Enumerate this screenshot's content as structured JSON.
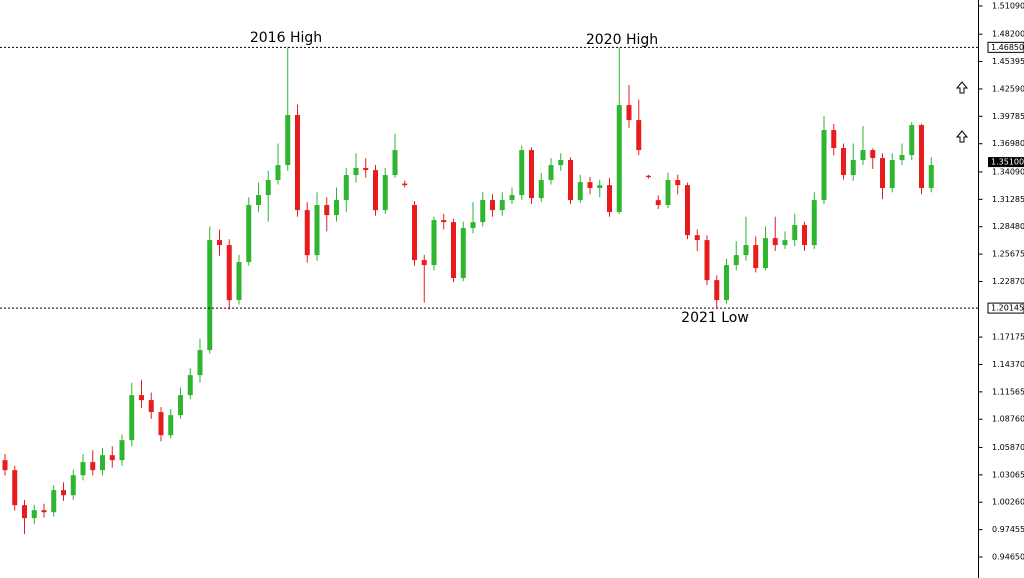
{
  "chart_data": {
    "type": "candlestick",
    "up_color": "#2fb52f",
    "down_color": "#e81c1c",
    "ylim": [
      0.925,
      1.517
    ],
    "yticks": [
      {
        "value": 1.5109,
        "label": "1.51090"
      },
      {
        "value": 1.482,
        "label": "1.48200"
      },
      {
        "value": 1.45395,
        "label": "1.45395"
      },
      {
        "value": 1.4259,
        "label": "1.42590"
      },
      {
        "value": 1.39785,
        "label": "1.39785"
      },
      {
        "value": 1.3698,
        "label": "1.36980"
      },
      {
        "value": 1.3409,
        "label": "1.34090"
      },
      {
        "value": 1.31285,
        "label": "1.31285"
      },
      {
        "value": 1.2848,
        "label": "1.28480"
      },
      {
        "value": 1.25675,
        "label": "1.25675"
      },
      {
        "value": 1.2287,
        "label": "1.22870"
      },
      {
        "value": 1.17175,
        "label": "1.17175"
      },
      {
        "value": 1.1437,
        "label": "1.14370"
      },
      {
        "value": 1.11565,
        "label": "1.11565"
      },
      {
        "value": 1.0876,
        "label": "1.08760"
      },
      {
        "value": 1.0587,
        "label": "1.05870"
      },
      {
        "value": 1.03065,
        "label": "1.03065"
      },
      {
        "value": 1.0026,
        "label": "1.00260"
      },
      {
        "value": 0.97455,
        "label": "0.97455"
      },
      {
        "value": 0.9465,
        "label": "0.94650"
      }
    ],
    "levels": [
      {
        "value": 1.4685,
        "label": "1.46850"
      },
      {
        "value": 1.20145,
        "label": "1.20145"
      }
    ],
    "current_price": {
      "value": 1.351,
      "label": "1.35100"
    },
    "annotations": [
      "2016 High",
      "2020 High",
      "2021 Low"
    ],
    "open": [
      1.0457,
      1.0355,
      0.9996,
      0.9863,
      0.9945,
      0.9924,
      1.015,
      1.0098,
      1.0303,
      1.0437,
      1.0355,
      1.0508,
      1.0457,
      1.0662,
      1.1123,
      1.1072,
      1.0949,
      1.0713,
      1.0918,
      1.1123,
      1.1328,
      1.1584,
      1.2711,
      1.266,
      1.2096,
      1.2486,
      1.307,
      1.3172,
      1.3326,
      1.3479,
      1.3992,
      1.3018,
      1.2557,
      1.307,
      1.2967,
      1.3121,
      1.3377,
      1.3449,
      1.3428,
      1.3018,
      1.3377,
      1.329,
      1.307,
      1.2506,
      1.2455,
      1.2916,
      1.2895,
      1.2322,
      1.2834,
      1.2895,
      1.3121,
      1.3018,
      1.3121,
      1.3172,
      1.3633,
      1.3141,
      1.3326,
      1.3479,
      1.3531,
      1.3121,
      1.3305,
      1.3244,
      1.3274,
      1.2998,
      1.4094,
      1.394,
      1.337,
      1.312,
      1.307,
      1.3326,
      1.3274,
      1.2762,
      1.2711,
      1.2301,
      1.2096,
      1.2455,
      1.2557,
      1.266,
      1.2424,
      1.2731,
      1.266,
      1.2711,
      1.2865,
      1.266,
      1.3121,
      1.3838,
      1.3654,
      1.3377,
      1.3531,
      1.3633,
      1.3551,
      1.3244,
      1.3531,
      1.3582,
      1.3889,
      1.3244
    ],
    "high": [
      1.052,
      1.04,
      1.005,
      1.0,
      1.001,
      1.02,
      1.023,
      1.036,
      1.052,
      1.056,
      1.058,
      1.06,
      1.072,
      1.125,
      1.128,
      1.115,
      1.1,
      1.098,
      1.12,
      1.14,
      1.17,
      1.285,
      1.282,
      1.272,
      1.256,
      1.315,
      1.33,
      1.342,
      1.37,
      1.4685,
      1.41,
      1.31,
      1.32,
      1.315,
      1.325,
      1.345,
      1.36,
      1.355,
      1.348,
      1.345,
      1.38,
      1.332,
      1.311,
      1.256,
      1.295,
      1.298,
      1.293,
      1.29,
      1.31,
      1.32,
      1.318,
      1.32,
      1.325,
      1.368,
      1.366,
      1.34,
      1.355,
      1.36,
      1.356,
      1.338,
      1.336,
      1.333,
      1.335,
      1.4685,
      1.43,
      1.415,
      1.338,
      1.317,
      1.34,
      1.338,
      1.33,
      1.282,
      1.276,
      1.235,
      1.252,
      1.27,
      1.295,
      1.275,
      1.285,
      1.295,
      1.28,
      1.298,
      1.29,
      1.32,
      1.398,
      1.39,
      1.37,
      1.37,
      1.388,
      1.365,
      1.36,
      1.36,
      1.37,
      1.392,
      1.39,
      1.356
    ],
    "low": [
      1.03,
      0.994,
      0.97,
      0.98,
      0.987,
      0.988,
      1.004,
      1.005,
      1.025,
      1.03,
      1.03,
      1.038,
      1.04,
      1.06,
      1.099,
      1.088,
      1.065,
      1.068,
      1.088,
      1.108,
      1.125,
      1.155,
      1.255,
      1.2,
      1.205,
      1.245,
      1.3,
      1.29,
      1.328,
      1.342,
      1.295,
      1.248,
      1.25,
      1.28,
      1.29,
      1.3,
      1.33,
      1.335,
      1.296,
      1.298,
      1.335,
      1.325,
      1.245,
      1.207,
      1.24,
      1.282,
      1.228,
      1.229,
      1.278,
      1.285,
      1.295,
      1.296,
      1.308,
      1.312,
      1.308,
      1.31,
      1.328,
      1.342,
      1.308,
      1.309,
      1.318,
      1.315,
      1.295,
      1.298,
      1.386,
      1.358,
      1.334,
      1.303,
      1.304,
      1.318,
      1.272,
      1.26,
      1.225,
      1.2015,
      1.206,
      1.24,
      1.25,
      1.238,
      1.24,
      1.26,
      1.262,
      1.265,
      1.26,
      1.262,
      1.308,
      1.358,
      1.333,
      1.332,
      1.348,
      1.344,
      1.313,
      1.32,
      1.348,
      1.353,
      1.318,
      1.32
    ],
    "close": [
      1.0355,
      0.9996,
      0.9863,
      0.9945,
      0.9924,
      1.015,
      1.0098,
      1.0303,
      1.0437,
      1.0355,
      1.0508,
      1.0457,
      1.0662,
      1.1123,
      1.1072,
      1.0949,
      1.0713,
      1.0918,
      1.1123,
      1.1328,
      1.1584,
      1.2711,
      1.266,
      1.2096,
      1.2486,
      1.307,
      1.3172,
      1.3326,
      1.3479,
      1.3992,
      1.3018,
      1.2557,
      1.307,
      1.2967,
      1.3121,
      1.3377,
      1.3449,
      1.3428,
      1.3018,
      1.3377,
      1.3633,
      1.3274,
      1.2506,
      1.2455,
      1.2916,
      1.2895,
      1.2322,
      1.2834,
      1.2895,
      1.3121,
      1.3018,
      1.3121,
      1.3172,
      1.3633,
      1.3141,
      1.3326,
      1.3479,
      1.3531,
      1.3121,
      1.3305,
      1.3244,
      1.3274,
      1.2998,
      1.4094,
      1.394,
      1.3633,
      1.3356,
      1.307,
      1.3326,
      1.3274,
      1.2762,
      1.2711,
      1.2301,
      1.2096,
      1.2455,
      1.2557,
      1.266,
      1.2424,
      1.2731,
      1.266,
      1.2711,
      1.2865,
      1.266,
      1.3121,
      1.3838,
      1.3654,
      1.3377,
      1.3531,
      1.3633,
      1.3551,
      1.3244,
      1.3531,
      1.3582,
      1.3889,
      1.3244,
      1.3479
    ]
  }
}
